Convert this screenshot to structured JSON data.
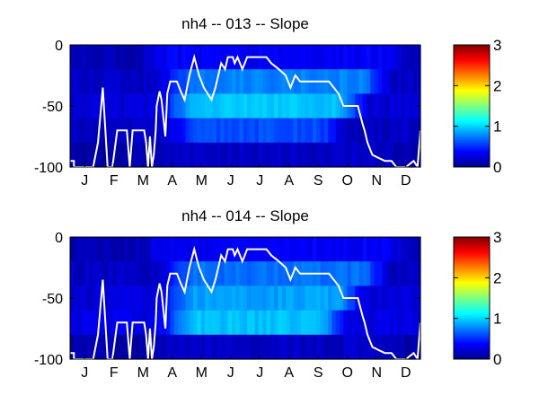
{
  "chart_data": [
    {
      "type": "heatmap",
      "title": "nh4 -- 013 -- Slope",
      "x_tick_labels": [
        "J",
        "F",
        "M",
        "A",
        "M",
        "J",
        "J",
        "A",
        "S",
        "O",
        "N",
        "D"
      ],
      "xlim": [
        1,
        365
      ],
      "ylim": [
        -100,
        0
      ],
      "y_ticks": [
        0,
        -50,
        -100
      ],
      "colorbar": {
        "colormap": "jet",
        "range": [
          0,
          3
        ],
        "ticks": [
          0,
          1,
          2,
          3
        ]
      },
      "depth_bands": [
        {
          "top": 0,
          "bottom": -20,
          "low": 0.15,
          "high": 0.35,
          "ramp": [
            60,
            320
          ]
        },
        {
          "top": -20,
          "bottom": -40,
          "low": 0.2,
          "high": 0.75,
          "ramp": [
            85,
            300
          ]
        },
        {
          "top": -40,
          "bottom": -60,
          "low": 0.25,
          "high": 0.95,
          "ramp": [
            85,
            275
          ]
        },
        {
          "top": -60,
          "bottom": -80,
          "low": 0.2,
          "high": 0.6,
          "ramp": [
            90,
            255
          ]
        },
        {
          "top": -80,
          "bottom": -100,
          "low": 0.12,
          "high": 0.2,
          "ramp": [
            60,
            320
          ]
        }
      ],
      "line": {
        "color": "#ffffff",
        "x": [
          1,
          5,
          5,
          25,
          30,
          35,
          40,
          45,
          50,
          55,
          60,
          63,
          66,
          70,
          78,
          80,
          82,
          84,
          86,
          88,
          90,
          91,
          94,
          96,
          98,
          100,
          102,
          105,
          108,
          112,
          116,
          120,
          125,
          130,
          135,
          140,
          148,
          152,
          155,
          158,
          162,
          165,
          170,
          172,
          175,
          180,
          185,
          195,
          205,
          210,
          218,
          225,
          230,
          235,
          240,
          258,
          270,
          280,
          285,
          290,
          295,
          300,
          305,
          307,
          310,
          315,
          320,
          328,
          335,
          340,
          345,
          350,
          358,
          362,
          365
        ],
        "y": [
          -95,
          -95,
          -100,
          -100,
          -80,
          -35,
          -100,
          -100,
          -70,
          -70,
          -70,
          -100,
          -70,
          -70,
          -70,
          -80,
          -100,
          -75,
          -100,
          -90,
          -70,
          -50,
          -38,
          -45,
          -60,
          -75,
          -40,
          -30,
          -30,
          -30,
          -38,
          -45,
          -25,
          -10,
          -25,
          -35,
          -45,
          -35,
          -25,
          -15,
          -20,
          -10,
          -10,
          -15,
          -10,
          -20,
          -10,
          -10,
          -10,
          -15,
          -20,
          -25,
          -35,
          -25,
          -30,
          -30,
          -30,
          -40,
          -50,
          -50,
          -50,
          -50,
          -65,
          -70,
          -80,
          -90,
          -92,
          -95,
          -95,
          -100,
          -100,
          -100,
          -95,
          -100,
          -70
        ]
      }
    },
    {
      "type": "heatmap",
      "title": "nh4 -- 014 -- Slope",
      "x_tick_labels": [
        "J",
        "F",
        "M",
        "A",
        "M",
        "J",
        "J",
        "A",
        "S",
        "O",
        "N",
        "D"
      ],
      "xlim": [
        1,
        365
      ],
      "ylim": [
        -100,
        0
      ],
      "y_ticks": [
        0,
        -50,
        -100
      ],
      "colorbar": {
        "colormap": "jet",
        "range": [
          0,
          3
        ],
        "ticks": [
          0,
          1,
          2,
          3
        ]
      },
      "depth_bands": [
        {
          "top": 0,
          "bottom": -20,
          "low": 0.15,
          "high": 0.35,
          "ramp": [
            60,
            320
          ]
        },
        {
          "top": -20,
          "bottom": -40,
          "low": 0.2,
          "high": 0.7,
          "ramp": [
            85,
            300
          ]
        },
        {
          "top": -40,
          "bottom": -60,
          "low": 0.25,
          "high": 0.85,
          "ramp": [
            85,
            275
          ]
        },
        {
          "top": -60,
          "bottom": -80,
          "low": 0.3,
          "high": 0.95,
          "ramp": [
            85,
            255
          ]
        },
        {
          "top": -80,
          "bottom": -100,
          "low": 0.12,
          "high": 0.2,
          "ramp": [
            60,
            320
          ]
        }
      ],
      "line": {
        "color": "#ffffff",
        "x": [
          1,
          5,
          5,
          25,
          30,
          35,
          40,
          45,
          50,
          55,
          60,
          63,
          66,
          70,
          78,
          80,
          82,
          84,
          86,
          88,
          90,
          91,
          94,
          96,
          98,
          100,
          102,
          105,
          108,
          112,
          116,
          120,
          125,
          130,
          135,
          140,
          148,
          152,
          155,
          158,
          162,
          165,
          170,
          172,
          175,
          180,
          185,
          195,
          205,
          210,
          218,
          225,
          230,
          235,
          240,
          258,
          270,
          280,
          285,
          290,
          295,
          300,
          305,
          307,
          310,
          315,
          320,
          328,
          335,
          340,
          345,
          350,
          358,
          362,
          365
        ],
        "y": [
          -95,
          -95,
          -100,
          -100,
          -80,
          -35,
          -100,
          -100,
          -70,
          -70,
          -70,
          -100,
          -70,
          -70,
          -70,
          -80,
          -100,
          -75,
          -100,
          -90,
          -70,
          -50,
          -38,
          -45,
          -60,
          -75,
          -40,
          -30,
          -30,
          -30,
          -38,
          -45,
          -25,
          -10,
          -25,
          -35,
          -45,
          -35,
          -25,
          -15,
          -20,
          -10,
          -10,
          -15,
          -10,
          -20,
          -10,
          -10,
          -10,
          -15,
          -20,
          -25,
          -35,
          -25,
          -30,
          -30,
          -30,
          -40,
          -50,
          -50,
          -50,
          -50,
          -65,
          -70,
          -80,
          -90,
          -92,
          -95,
          -95,
          -100,
          -100,
          -100,
          -95,
          -100,
          -70
        ]
      }
    }
  ]
}
